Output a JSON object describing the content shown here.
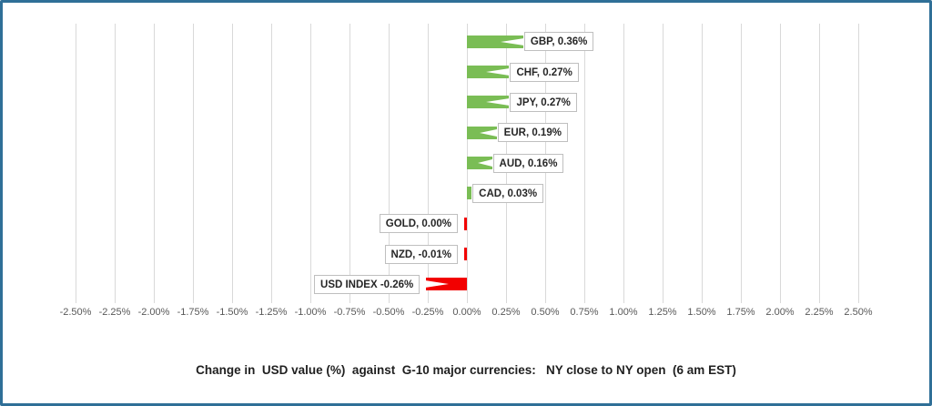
{
  "frame": {
    "border_color": "#2f6f97",
    "background": "#ffffff"
  },
  "chart_data": {
    "type": "bar",
    "orientation": "horizontal",
    "title": "Change in  USD value (%)  against  G-10 major currencies:   NY close to NY open  (6 am EST)",
    "xlabel": "",
    "ylabel": "",
    "xlim": [
      -2.5,
      2.5
    ],
    "tick_step": 0.25,
    "grid": true,
    "legend": "none",
    "categories": [
      "GBP",
      "CHF",
      "JPY",
      "EUR",
      "AUD",
      "CAD",
      "GOLD",
      "NZD",
      "USD INDEX"
    ],
    "values": [
      0.36,
      0.27,
      0.27,
      0.19,
      0.16,
      0.03,
      0.0,
      -0.01,
      -0.26
    ],
    "data_labels": [
      "GBP, 0.36%",
      "CHF, 0.27%",
      "JPY, 0.27%",
      "EUR, 0.19%",
      "AUD, 0.16%",
      "CAD, 0.03%",
      "GOLD, 0.00%",
      "NZD, -0.01%",
      "USD INDEX -0.26%"
    ],
    "tick_labels": [
      "-2.50%",
      "-2.25%",
      "-2.00%",
      "-1.75%",
      "-1.50%",
      "-1.25%",
      "-1.00%",
      "-0.75%",
      "-0.50%",
      "-0.25%",
      "0.00%",
      "0.25%",
      "0.50%",
      "0.75%",
      "1.00%",
      "1.25%",
      "1.50%",
      "1.75%",
      "2.00%",
      "2.25%",
      "2.50%"
    ],
    "colors": {
      "positive": "#7abd55",
      "negative": "#f20000",
      "gridline": "#d9d9d9",
      "axis_text": "#595959",
      "label_box_border": "#bfbfbf",
      "label_text": "#262626"
    }
  }
}
